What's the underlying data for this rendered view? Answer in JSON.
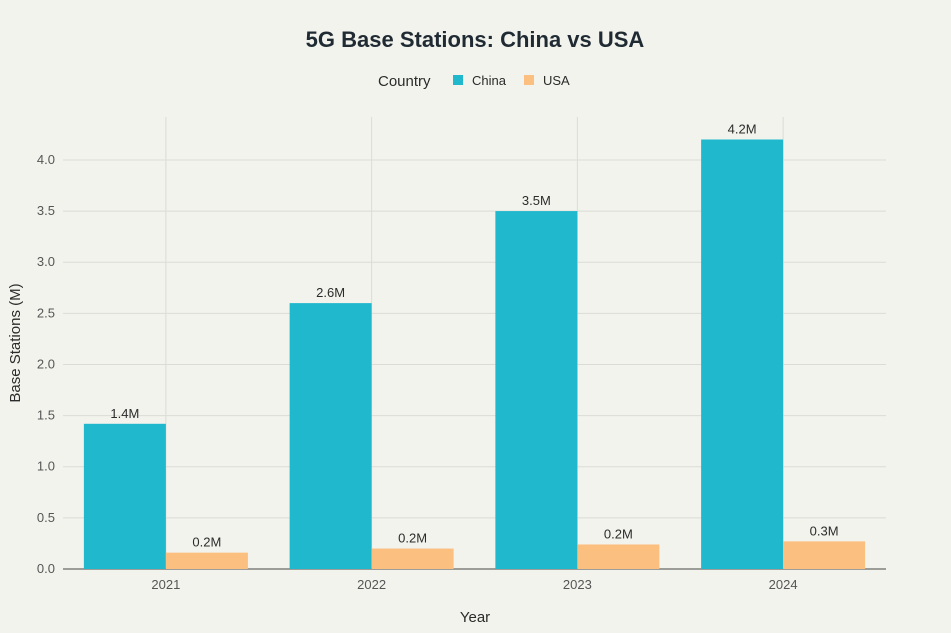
{
  "chart_data": {
    "type": "bar",
    "title": "5G Base Stations: China vs USA",
    "legend_title": "Country",
    "legend_placement": "top-center",
    "xlabel": "Year",
    "ylabel": "Base Stations (M)",
    "categories": [
      "2021",
      "2022",
      "2023",
      "2024"
    ],
    "series": [
      {
        "name": "China",
        "color": "#20b8cd",
        "values": [
          1.42,
          2.6,
          3.5,
          4.2
        ],
        "labels": [
          "1.4M",
          "2.6M",
          "3.5M",
          "4.2M"
        ]
      },
      {
        "name": "USA",
        "color": "#fbbf7f",
        "values": [
          0.16,
          0.2,
          0.24,
          0.27
        ],
        "labels": [
          "0.2M",
          "0.2M",
          "0.2M",
          "0.3M"
        ]
      }
    ],
    "ylim": [
      0,
      4.42
    ],
    "yticks": [
      "0.0",
      "0.5",
      "1.0",
      "1.5",
      "2.0",
      "2.5",
      "3.0",
      "3.5",
      "4.0"
    ],
    "grid": true
  }
}
